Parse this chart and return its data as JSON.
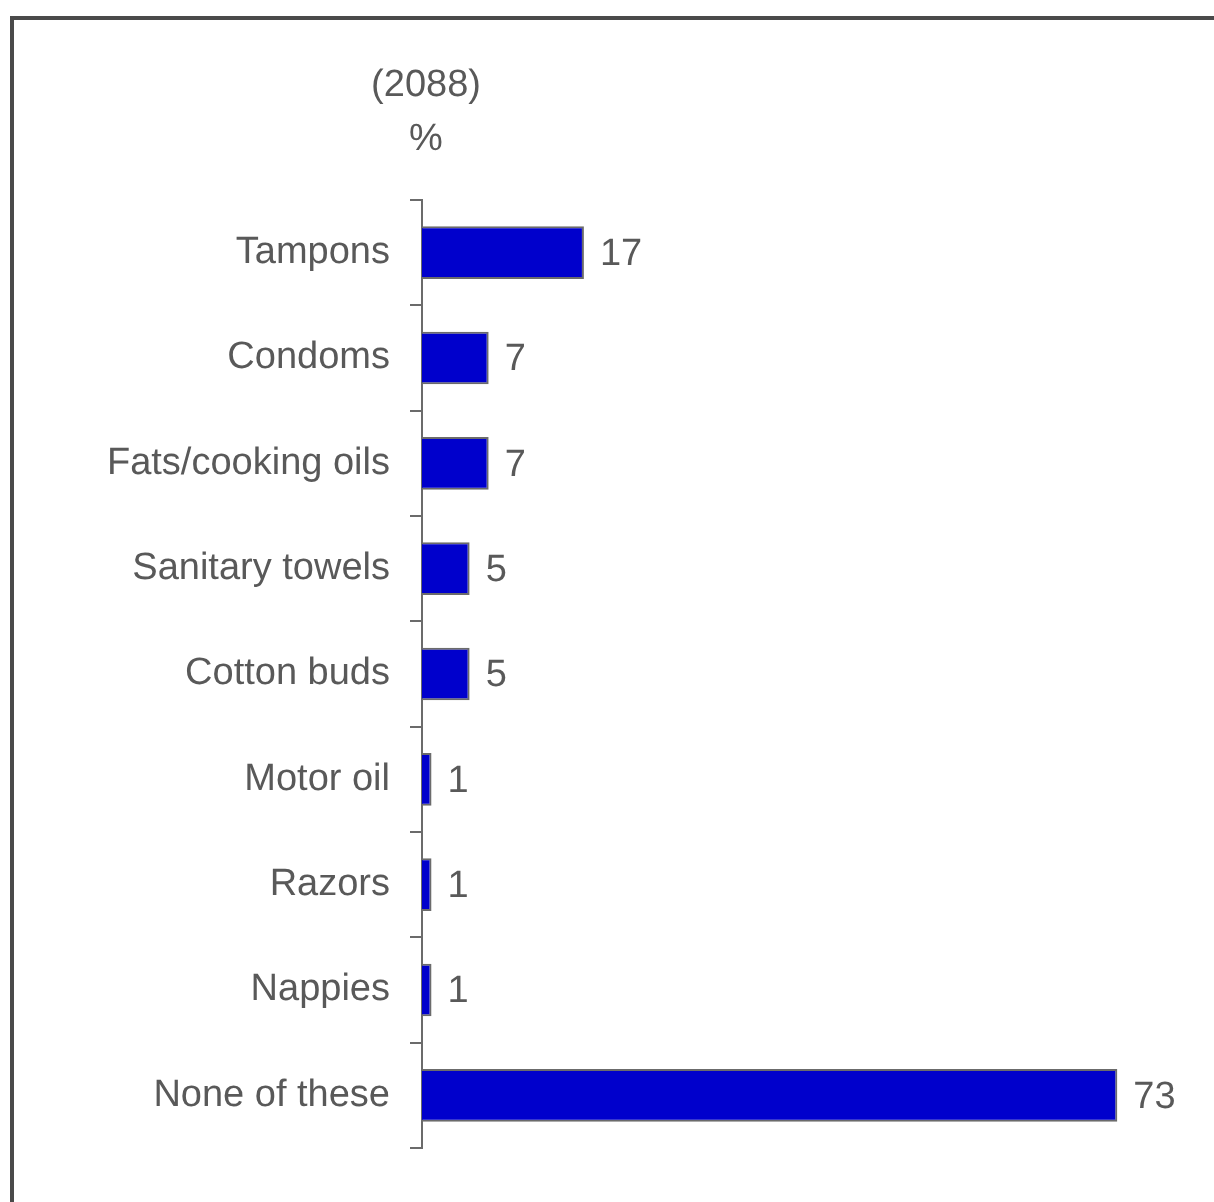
{
  "chart_data": {
    "type": "bar",
    "orientation": "horizontal",
    "title": "(2088)",
    "xlabel": "%",
    "categories": [
      "Tampons",
      "Condoms",
      "Fats/cooking oils",
      "Sanitary towels",
      "Cotton buds",
      "Motor oil",
      "Razors",
      "Nappies",
      "None of these"
    ],
    "values": [
      17,
      7,
      7,
      5,
      5,
      1,
      1,
      1,
      73
    ],
    "color": "#0000cc",
    "data_labels": true,
    "tick_labels": "y"
  }
}
